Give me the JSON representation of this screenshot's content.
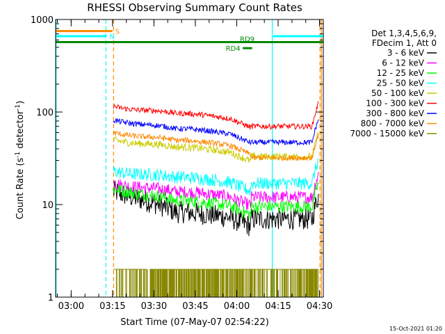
{
  "chart_data": {
    "type": "line",
    "title": "RHESSI Observing Summary Count Rates",
    "xlabel": "Start Time (07-May-07 02:54:22)",
    "ylabel_main": "Count Rate (s",
    "ylabel_sup1": "-1",
    "ylabel_mid": " detector",
    "ylabel_sup2": "-1",
    "ylabel_end": ")",
    "x_unit": "minutes since 02:54:22",
    "y_scale": "log",
    "xlim": [
      0,
      97
    ],
    "ylim": [
      1,
      1000
    ],
    "x_ticks": [
      {
        "value": 5.63,
        "label": "03:00"
      },
      {
        "value": 20.63,
        "label": "03:15"
      },
      {
        "value": 35.63,
        "label": "03:30"
      },
      {
        "value": 50.63,
        "label": "03:45"
      },
      {
        "value": 65.63,
        "label": "04:00"
      },
      {
        "value": 80.63,
        "label": "04:15"
      },
      {
        "value": 95.63,
        "label": "04:30"
      }
    ],
    "y_ticks": [
      {
        "value": 1,
        "label": "1"
      },
      {
        "value": 10,
        "label": "10"
      },
      {
        "value": 100,
        "label": "100"
      },
      {
        "value": 1000,
        "label": "1000"
      }
    ],
    "legend": {
      "placement": "right",
      "header": [
        "Det 1,3,4,5,6,9,",
        "FDecim 1, Att 0"
      ],
      "entries": [
        {
          "label": "3 - 6 keV",
          "color": "#000000"
        },
        {
          "label": "6 - 12 keV",
          "color": "#ff00ff"
        },
        {
          "label": "12 - 25 keV",
          "color": "#00ff00"
        },
        {
          "label": "25 - 50 keV",
          "color": "#00ffff"
        },
        {
          "label": "50 - 100 keV",
          "color": "#cccc00"
        },
        {
          "label": "100 - 300 keV",
          "color": "#ff0000"
        },
        {
          "label": "300 - 800 keV",
          "color": "#0000ff"
        },
        {
          "label": "800 - 7000 keV",
          "color": "#ff8800"
        },
        {
          "label": "7000 - 15000 keV",
          "color": "#888800"
        }
      ]
    },
    "data_start": 20.9,
    "data_end": 95.2,
    "step_time": 70.8,
    "series": [
      {
        "name": "3 - 6 keV",
        "color": "#000000",
        "start": 14,
        "pre": 7.5,
        "post": 7,
        "noise": 0.12
      },
      {
        "name": "6 - 12 keV",
        "color": "#ff00ff",
        "start": 17,
        "pre": 12.5,
        "post": 12,
        "noise": 0.07
      },
      {
        "name": "12 - 25 keV",
        "color": "#00ff00",
        "start": 15,
        "pre": 10,
        "post": 9.5,
        "noise": 0.07
      },
      {
        "name": "25 - 50 keV",
        "color": "#00ffff",
        "start": 23,
        "pre": 18,
        "post": 17,
        "noise": 0.07
      },
      {
        "name": "50 - 100 keV",
        "color": "#cccc00",
        "start": 50,
        "pre": 38,
        "post": 33,
        "noise": 0.04
      },
      {
        "name": "100 - 300 keV",
        "color": "#ff0000",
        "start": 115,
        "pre": 88,
        "post": 70,
        "noise": 0.03
      },
      {
        "name": "300 - 800 keV",
        "color": "#0000ff",
        "start": 82,
        "pre": 60,
        "post": 47,
        "noise": 0.03
      },
      {
        "name": "800 - 7000 keV",
        "color": "#ff8800",
        "start": 60,
        "pre": 45,
        "post": 32,
        "noise": 0.03
      }
    ],
    "flags": [
      {
        "label": "S",
        "color": "#ff8800",
        "x_start": 0,
        "x_end": 20.6,
        "y": 750
      },
      {
        "label": "N",
        "color": "#00ffff",
        "x_start": 0,
        "x_end": 18.5,
        "y": 660
      },
      {
        "label": "",
        "color": "#00ffff",
        "x_start": 78.8,
        "x_end": 97,
        "y": 660
      },
      {
        "label": "RD9",
        "color": "#008800",
        "x_start": 0,
        "x_end": 97,
        "y": 570
      },
      {
        "label": "RD4",
        "color": "#008800",
        "x_start": 67.8,
        "x_end": 71.2,
        "y": 490
      }
    ],
    "vlines": [
      {
        "x": 0.2,
        "color": "#00ffff",
        "style": "solid"
      },
      {
        "x": 18.2,
        "color": "#00ffff",
        "style": "dashed"
      },
      {
        "x": 21.0,
        "color": "#ff8800",
        "style": "dashed"
      },
      {
        "x": 78.5,
        "color": "#00ffff",
        "style": "solid"
      },
      {
        "x": 95.8,
        "color": "#ff8800",
        "style": "dashed"
      },
      {
        "x": 96.3,
        "color": "#ff8800",
        "style": "solid"
      }
    ]
  },
  "footer": {
    "timestamp": "15-Oct-2021 01:20"
  }
}
